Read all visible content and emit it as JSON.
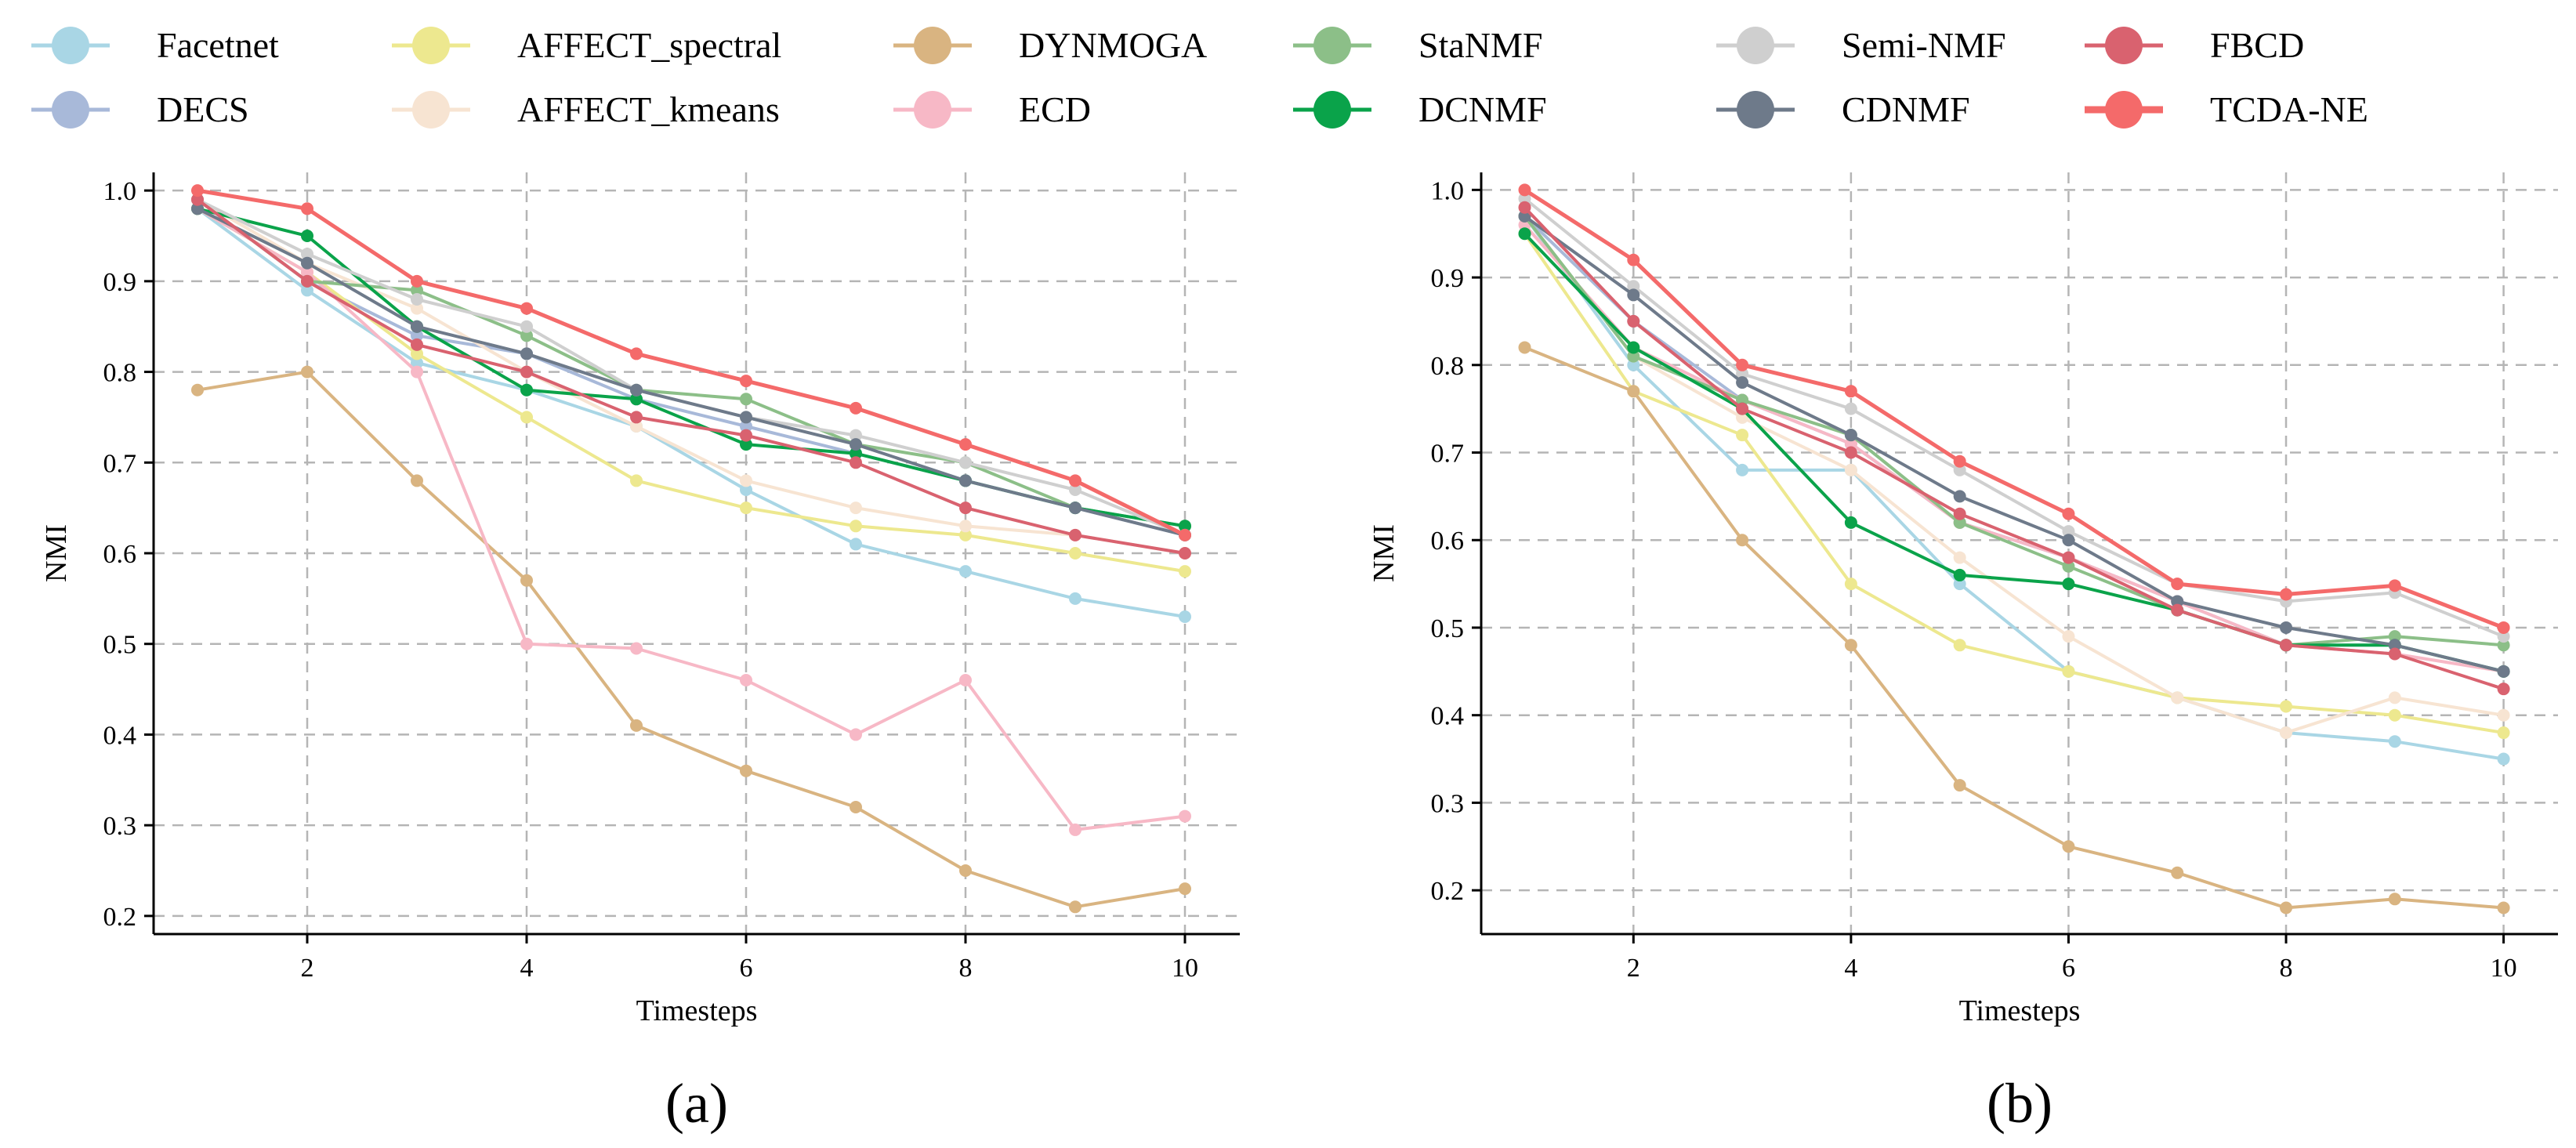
{
  "legend": [
    {
      "name": "Facetnet",
      "color": "#a9d6e5"
    },
    {
      "name": "DECS",
      "color": "#a8b9d9"
    },
    {
      "name": "AFFECT_spectral",
      "color": "#ede88f"
    },
    {
      "name": "AFFECT_kmeans",
      "color": "#f7e4d2"
    },
    {
      "name": "DYNMOGA",
      "color": "#d9b481"
    },
    {
      "name": "ECD",
      "color": "#f7b8c6"
    },
    {
      "name": "StaNMF",
      "color": "#8cbf88"
    },
    {
      "name": "DCNMF",
      "color": "#0aa34a"
    },
    {
      "name": "Semi-NMF",
      "color": "#cfcfcf"
    },
    {
      "name": "CDNMF",
      "color": "#6e7a8a"
    },
    {
      "name": "FBCD",
      "color": "#d9626f"
    },
    {
      "name": "TCDA-NE",
      "color": "#f46a6a"
    }
  ],
  "chart_data": [
    {
      "type": "line",
      "panel_label": "(a)",
      "xlabel": "Timesteps",
      "ylabel": "NMI",
      "xlim": [
        0.6,
        10.5
      ],
      "ylim": [
        0.18,
        1.02
      ],
      "xticks": [
        2,
        4,
        6,
        8,
        10
      ],
      "yticks": [
        0.2,
        0.3,
        0.4,
        0.5,
        0.6,
        0.7,
        0.8,
        0.9,
        1.0
      ],
      "ytick_labels": [
        "0.2",
        "0.3",
        "0.4",
        "0.5",
        "0.6",
        "0.7",
        "0.8",
        "0.9",
        "1.0"
      ],
      "grid": true,
      "x": [
        1,
        2,
        3,
        4,
        5,
        6,
        7,
        8,
        9,
        10
      ],
      "series": [
        {
          "name": "Facetnet",
          "values": [
            0.98,
            0.89,
            0.81,
            0.78,
            0.74,
            0.67,
            0.61,
            0.58,
            0.55,
            0.53
          ]
        },
        {
          "name": "DECS",
          "values": [
            0.99,
            0.9,
            0.84,
            0.82,
            0.77,
            0.74,
            0.71,
            0.68,
            0.65,
            0.62
          ]
        },
        {
          "name": "AFFECT_spectral",
          "values": [
            0.98,
            0.91,
            0.82,
            0.75,
            0.68,
            0.65,
            0.63,
            0.62,
            0.6,
            0.58
          ]
        },
        {
          "name": "AFFECT_kmeans",
          "values": [
            0.99,
            0.92,
            0.87,
            0.8,
            0.74,
            0.68,
            0.65,
            0.63,
            0.62,
            0.6
          ]
        },
        {
          "name": "DYNMOGA",
          "values": [
            0.78,
            0.8,
            0.68,
            0.57,
            0.41,
            0.36,
            0.32,
            0.25,
            0.21,
            0.23
          ]
        },
        {
          "name": "ECD",
          "values": [
            0.98,
            0.91,
            0.8,
            0.5,
            0.495,
            0.46,
            0.4,
            0.46,
            0.295,
            0.31
          ]
        },
        {
          "name": "StaNMF",
          "values": [
            0.99,
            0.9,
            0.89,
            0.84,
            0.78,
            0.77,
            0.72,
            0.7,
            0.65,
            0.63
          ]
        },
        {
          "name": "DCNMF",
          "values": [
            0.98,
            0.95,
            0.85,
            0.78,
            0.77,
            0.72,
            0.71,
            0.68,
            0.65,
            0.63
          ]
        },
        {
          "name": "Semi-NMF",
          "values": [
            0.99,
            0.93,
            0.88,
            0.85,
            0.78,
            0.75,
            0.73,
            0.7,
            0.67,
            0.62
          ]
        },
        {
          "name": "CDNMF",
          "values": [
            0.98,
            0.92,
            0.85,
            0.82,
            0.78,
            0.75,
            0.72,
            0.68,
            0.65,
            0.62
          ]
        },
        {
          "name": "FBCD",
          "values": [
            0.99,
            0.9,
            0.83,
            0.8,
            0.75,
            0.73,
            0.7,
            0.65,
            0.62,
            0.6
          ]
        },
        {
          "name": "TCDA-NE",
          "values": [
            1.0,
            0.98,
            0.9,
            0.87,
            0.82,
            0.79,
            0.76,
            0.72,
            0.68,
            0.62
          ]
        }
      ]
    },
    {
      "type": "line",
      "panel_label": "(b)",
      "xlabel": "Timesteps",
      "ylabel": "NMI",
      "xlim": [
        0.6,
        10.5
      ],
      "ylim": [
        0.15,
        1.02
      ],
      "xticks": [
        2,
        4,
        6,
        8,
        10
      ],
      "yticks": [
        0.2,
        0.3,
        0.4,
        0.5,
        0.6,
        0.7,
        0.8,
        0.9,
        1.0
      ],
      "ytick_labels": [
        "0.2",
        "0.3",
        "0.4",
        "0.5",
        "0.6",
        "0.7",
        "0.8",
        "0.9",
        "1.0"
      ],
      "grid": true,
      "x": [
        1,
        2,
        3,
        4,
        5,
        6,
        7,
        8,
        9,
        10
      ],
      "series": [
        {
          "name": "Facetnet",
          "values": [
            0.97,
            0.8,
            0.68,
            0.68,
            0.55,
            0.45,
            0.42,
            0.38,
            0.37,
            0.35
          ]
        },
        {
          "name": "DECS",
          "values": [
            0.97,
            0.85,
            0.76,
            0.71,
            0.62,
            0.58,
            0.53,
            0.48,
            0.48,
            0.45
          ]
        },
        {
          "name": "AFFECT_spectral",
          "values": [
            0.95,
            0.77,
            0.72,
            0.55,
            0.48,
            0.45,
            0.42,
            0.41,
            0.4,
            0.38
          ]
        },
        {
          "name": "AFFECT_kmeans",
          "values": [
            0.97,
            0.81,
            0.74,
            0.68,
            0.58,
            0.49,
            0.42,
            0.38,
            0.42,
            0.4
          ]
        },
        {
          "name": "DYNMOGA",
          "values": [
            0.82,
            0.77,
            0.6,
            0.48,
            0.32,
            0.25,
            0.22,
            0.18,
            0.19,
            0.18
          ]
        },
        {
          "name": "ECD",
          "values": [
            0.96,
            0.82,
            0.76,
            0.71,
            0.62,
            0.58,
            0.53,
            0.48,
            0.47,
            0.45
          ]
        },
        {
          "name": "StaNMF",
          "values": [
            0.97,
            0.81,
            0.76,
            0.72,
            0.62,
            0.57,
            0.52,
            0.48,
            0.49,
            0.48
          ]
        },
        {
          "name": "DCNMF",
          "values": [
            0.95,
            0.82,
            0.75,
            0.62,
            0.56,
            0.55,
            0.52,
            0.48,
            0.48,
            0.45
          ]
        },
        {
          "name": "Semi-NMF",
          "values": [
            0.99,
            0.89,
            0.79,
            0.75,
            0.68,
            0.61,
            0.55,
            0.53,
            0.54,
            0.49
          ]
        },
        {
          "name": "CDNMF",
          "values": [
            0.97,
            0.88,
            0.78,
            0.72,
            0.65,
            0.6,
            0.53,
            0.5,
            0.48,
            0.45
          ]
        },
        {
          "name": "FBCD",
          "values": [
            0.98,
            0.85,
            0.75,
            0.7,
            0.63,
            0.58,
            0.52,
            0.48,
            0.47,
            0.43
          ]
        },
        {
          "name": "TCDA-NE",
          "values": [
            1.0,
            0.92,
            0.8,
            0.77,
            0.69,
            0.63,
            0.55,
            0.538,
            0.548,
            0.5
          ]
        }
      ]
    }
  ]
}
